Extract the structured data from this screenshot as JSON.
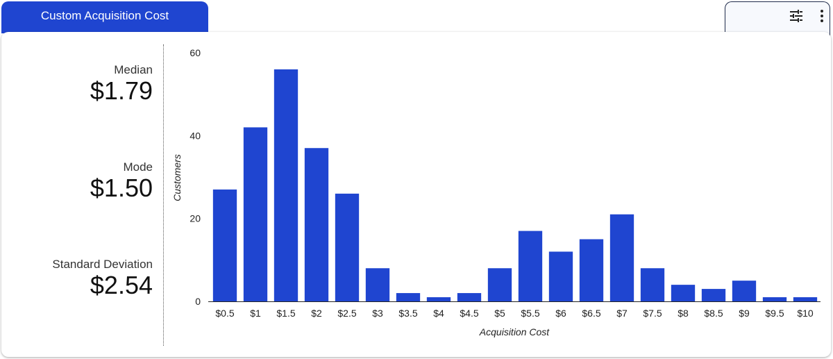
{
  "tab": {
    "title": "Custom Acquisition Cost"
  },
  "toolbar": {
    "filter_icon": "tune-icon",
    "menu_icon": "more-vert-icon"
  },
  "stats": {
    "median": {
      "label": "Median",
      "value": "$1.79"
    },
    "mode": {
      "label": "Mode",
      "value": "$1.50"
    },
    "std": {
      "label": "Standard Deviation",
      "value": "$2.54"
    }
  },
  "colors": {
    "accent": "#1f45d0",
    "bar": "#1f45d0"
  },
  "chart_data": {
    "type": "bar",
    "xlabel": "Acquisition Cost",
    "ylabel": "Customers",
    "ylim": [
      0,
      60
    ],
    "yticks": [
      0,
      20,
      40,
      60
    ],
    "categories": [
      "$0.5",
      "$1",
      "$1.5",
      "$2",
      "$2.5",
      "$3",
      "$3.5",
      "$4",
      "$4.5",
      "$5",
      "$5.5",
      "$6",
      "$6.5",
      "$7",
      "$7.5",
      "$8",
      "$8.5",
      "$9",
      "$9.5",
      "$10"
    ],
    "values": [
      27,
      42,
      56,
      37,
      26,
      8,
      2,
      1,
      2,
      8,
      17,
      12,
      15,
      21,
      8,
      4,
      3,
      5,
      1,
      1
    ],
    "grid": false,
    "legend": "none"
  }
}
